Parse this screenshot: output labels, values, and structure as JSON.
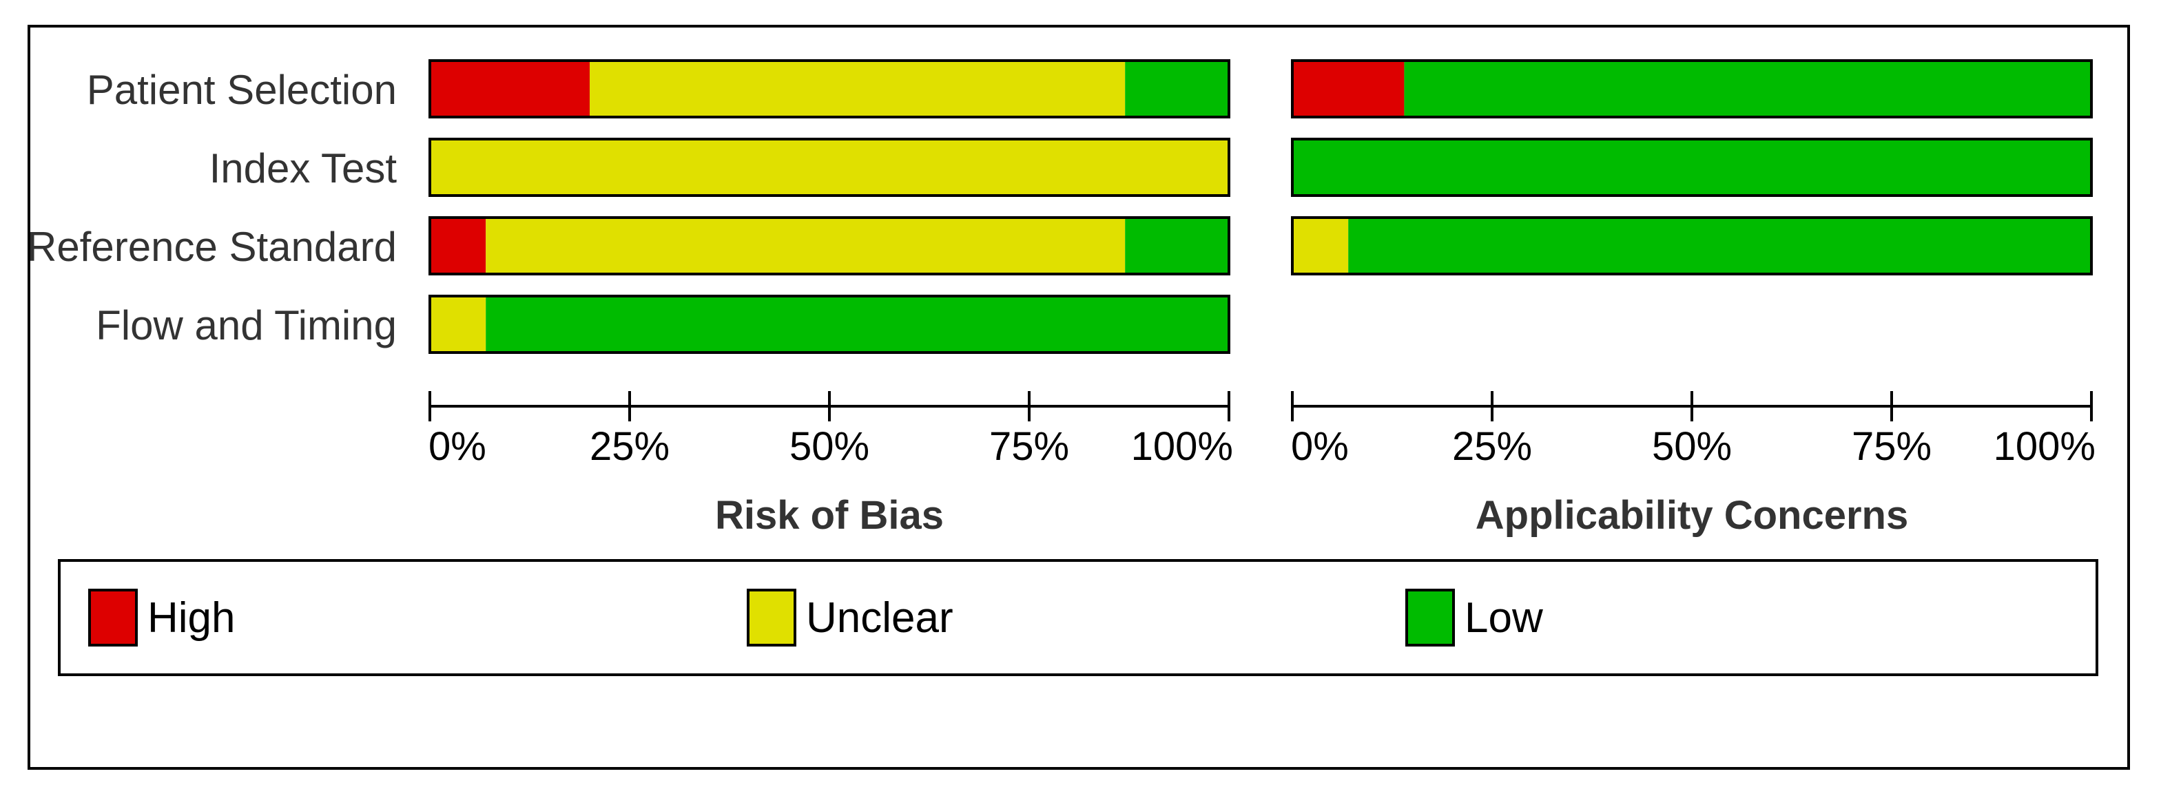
{
  "chart_data": {
    "type": "bar",
    "stacked": true,
    "orientation": "horizontal",
    "categories": [
      "Patient Selection",
      "Index Test",
      "Reference Standard",
      "Flow and Timing"
    ],
    "xlim": [
      0,
      100
    ],
    "ticks": [
      "0%",
      "25%",
      "50%",
      "75%",
      "100%"
    ],
    "panels": [
      {
        "title": "Risk of Bias",
        "series": [
          {
            "name": "High",
            "values": [
              20,
              0,
              7,
              0
            ]
          },
          {
            "name": "Unclear",
            "values": [
              67,
              100,
              80,
              7
            ]
          },
          {
            "name": "Low",
            "values": [
              13,
              0,
              13,
              93
            ]
          }
        ]
      },
      {
        "title": "Applicability Concerns",
        "series": [
          {
            "name": "High",
            "values": [
              14,
              0,
              0,
              null
            ]
          },
          {
            "name": "Unclear",
            "values": [
              0,
              0,
              7,
              null
            ]
          },
          {
            "name": "Low",
            "values": [
              86,
              100,
              93,
              null
            ]
          }
        ]
      }
    ],
    "legend": {
      "position": "bottom",
      "items": [
        {
          "label": "High",
          "color": "#dd0000"
        },
        {
          "label": "Unclear",
          "color": "#e0e000"
        },
        {
          "label": "Low",
          "color": "#00bb00"
        }
      ]
    },
    "grid": false
  }
}
